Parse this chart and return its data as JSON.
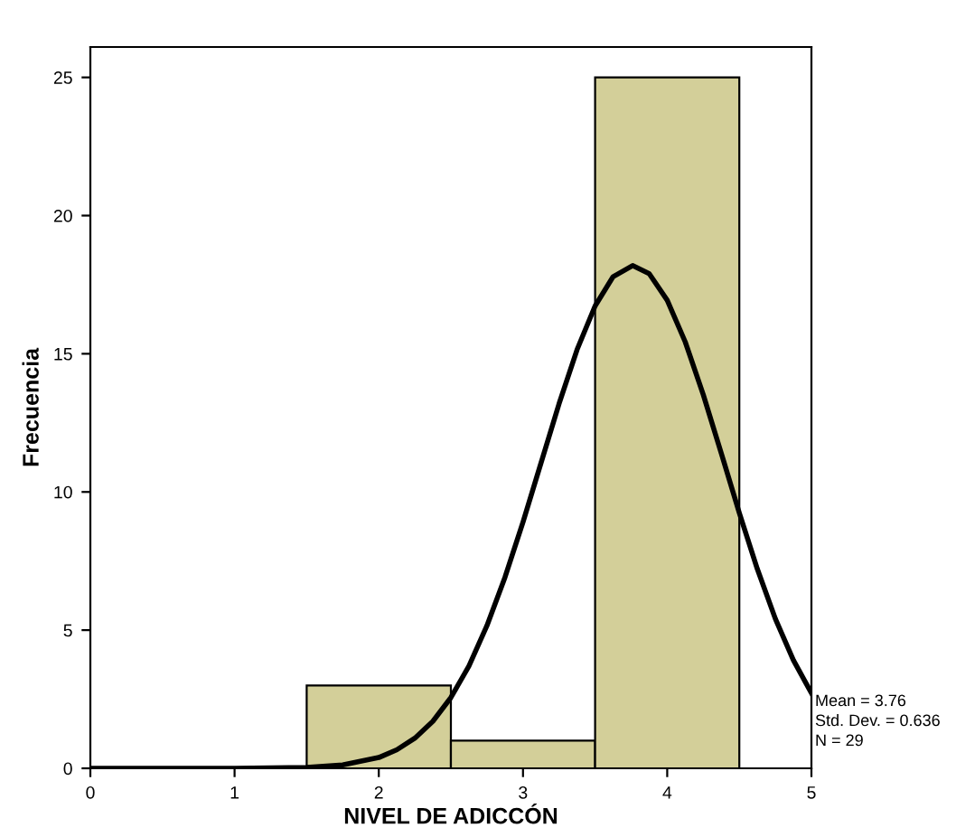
{
  "chart_data": {
    "type": "histogram",
    "xlabel": "NIVEL DE ADICCÓN",
    "ylabel": "Frecuencia",
    "bins": [
      1.5,
      2.5,
      3.5,
      4.5
    ],
    "values": [
      3,
      1,
      25
    ],
    "color": "#d3cf99",
    "series": [
      {
        "type": "line",
        "color": "#000000",
        "x": [
          0,
          1,
          1.5,
          1.75,
          2,
          2.125,
          2.25,
          2.375,
          2.5,
          2.625,
          2.75,
          2.875,
          3,
          3.125,
          3.25,
          3.375,
          3.5,
          3.625,
          3.76,
          3.875,
          4,
          4.125,
          4.25,
          4.375,
          4.5,
          4.625,
          4.75,
          4.875,
          5
        ],
        "values": [
          0,
          0,
          0.03,
          0.12,
          0.39,
          0.67,
          1.09,
          1.7,
          2.56,
          3.7,
          5.16,
          6.91,
          8.91,
          11.05,
          13.19,
          15.15,
          16.73,
          17.79,
          18.19,
          17.9,
          16.94,
          15.43,
          13.52,
          11.4,
          9.24,
          7.21,
          5.41,
          3.91,
          2.72
        ]
      }
    ],
    "xlim": [
      0,
      5
    ],
    "ylim": [
      0,
      26.1
    ],
    "xticks": [
      0,
      1,
      2,
      3,
      4,
      5
    ],
    "yticks": [
      0,
      5,
      10,
      15,
      20,
      25
    ],
    "grid": false,
    "annotations": [
      "Mean = 3.76",
      "Std. Dev. = 0.636",
      "N = 29"
    ]
  }
}
